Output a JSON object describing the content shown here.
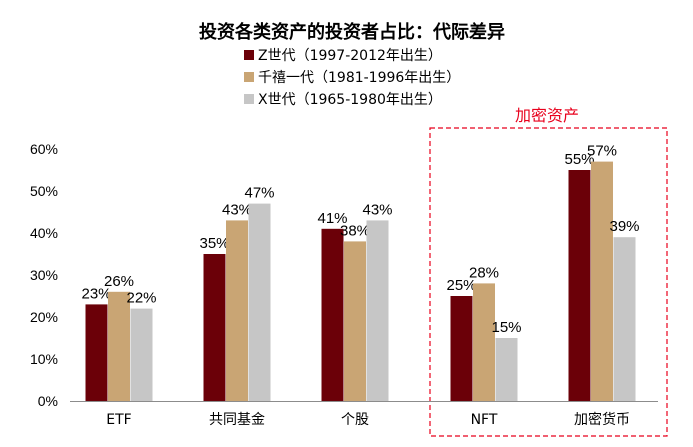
{
  "chart_data": {
    "type": "bar",
    "title": "投资各类资产的投资者占比：代际差异",
    "categories": [
      "ETF",
      "共同基金",
      "个股",
      "NFT",
      "加密货币"
    ],
    "series": [
      {
        "name": "Z世代（1997-2012年出生）",
        "color": "#6b0008",
        "values": [
          23,
          35,
          41,
          25,
          55
        ]
      },
      {
        "name": "千禧一代（1981-1996年出生）",
        "color": "#c9a574",
        "values": [
          26,
          43,
          38,
          28,
          57
        ]
      },
      {
        "name": "X世代（1965-1980年出生）",
        "color": "#c6c6c6",
        "values": [
          22,
          47,
          43,
          15,
          39
        ]
      }
    ],
    "data_labels": [
      [
        "23%",
        "35%",
        "41%",
        "25%",
        "55%"
      ],
      [
        "26%",
        "43%",
        "38%",
        "28%",
        "57%"
      ],
      [
        "22%",
        "47%",
        "43%",
        "15%",
        "39%"
      ]
    ],
    "y_ticks": [
      "0%",
      "10%",
      "20%",
      "30%",
      "40%",
      "50%",
      "60%"
    ],
    "ylim": [
      0,
      60
    ],
    "ylabel": "",
    "xlabel": "",
    "grid": false,
    "legend_position": "top-center",
    "highlight": {
      "label": "加密资产",
      "color": "#e8001c",
      "categories": [
        "NFT",
        "加密货币"
      ]
    }
  }
}
